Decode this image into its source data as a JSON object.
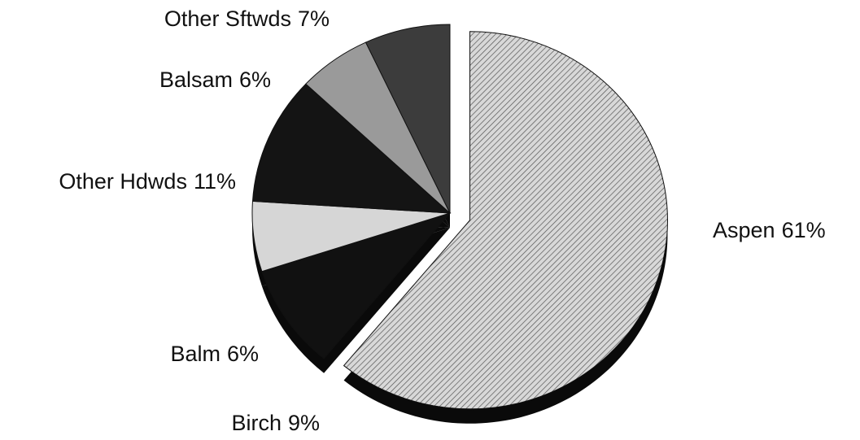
{
  "chart_data": {
    "type": "pie",
    "categories": [
      "Aspen",
      "Birch",
      "Balm",
      "Other Hdwds",
      "Balsam",
      "Other Sftwds"
    ],
    "values": [
      61,
      9,
      6,
      11,
      6,
      7
    ],
    "value_labels": [
      "61%",
      "9%",
      "6%",
      "11%",
      "6%",
      "7%"
    ],
    "colors": [
      "#c4c4c4",
      "#111111",
      "#d6d6d6",
      "#141414",
      "#9a9a9a",
      "#3c3c3c"
    ],
    "exploded": [
      true,
      false,
      false,
      false,
      false,
      false
    ]
  }
}
